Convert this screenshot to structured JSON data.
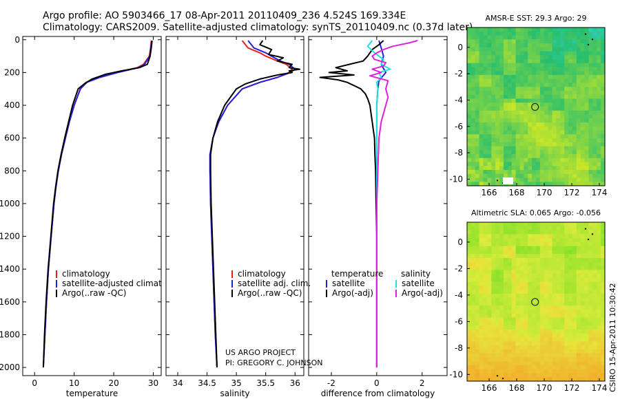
{
  "header": {
    "line1": "Argo profile: AO 5903466_17 08-Apr-2011 20110409_236 4.524S 169.334E",
    "line2": "Climatology: CARS2009. Satellite-adjusted climatology: synTS_20110409.nc (0.37d later)"
  },
  "credits": {
    "project": "US ARGO PROJECT",
    "pi": "PI: GREGORY C. JOHNSON",
    "stamp": "CSIRO 15-Apr-2011 10:30:42"
  },
  "colors": {
    "climatology": "#e82020",
    "satellite": "#2020e0",
    "argo": "#000000",
    "sal_satellite": "#20e0e0",
    "sal_argo": "#e020e0"
  },
  "chart_data": [
    {
      "type": "line",
      "name": "temperature-panel",
      "xlabel": "temperature",
      "ylabel": "",
      "xlim": [
        -3,
        32
      ],
      "ylim": [
        2050,
        -20
      ],
      "xticks": [
        0,
        10,
        20,
        30
      ],
      "xtick_labels": [
        "0",
        "10",
        "20",
        "30"
      ],
      "yticks": [
        0,
        200,
        400,
        600,
        800,
        1000,
        1200,
        1400,
        1600,
        1800,
        2000
      ],
      "ytick_labels": [
        "0",
        "200",
        "400",
        "600",
        "800",
        "1000",
        "1200",
        "1400",
        "1600",
        "1800",
        "2000"
      ],
      "legend": [
        "climatology",
        "satellite-adjusted climatology",
        "Argo(..raw -QC)"
      ],
      "series": [
        {
          "name": "climatology",
          "color": "#e82020",
          "depth": [
            5,
            50,
            100,
            150,
            170,
            200,
            230,
            260,
            300,
            400,
            500,
            600,
            700,
            800,
            900,
            1000,
            1200,
            1400,
            1600,
            1800,
            2000
          ],
          "values": [
            29.5,
            29.3,
            29.0,
            27.5,
            26.0,
            20.5,
            16.0,
            13.0,
            11.5,
            10.0,
            8.8,
            7.8,
            6.8,
            6.0,
            5.4,
            4.9,
            4.2,
            3.5,
            3.0,
            2.6,
            2.2
          ]
        },
        {
          "name": "satellite-adjusted climatology",
          "color": "#2020e0",
          "depth": [
            5,
            50,
            100,
            150,
            170,
            200,
            230,
            260,
            300,
            400,
            500,
            600,
            700,
            800,
            900,
            1000,
            1200,
            1400,
            1600,
            1800,
            2000
          ],
          "values": [
            29.6,
            29.4,
            29.1,
            27.8,
            26.3,
            21.0,
            16.5,
            13.2,
            11.6,
            10.0,
            8.8,
            7.8,
            6.8,
            6.0,
            5.4,
            4.9,
            4.2,
            3.5,
            3.0,
            2.6,
            2.2
          ]
        },
        {
          "name": "Argo(..raw -QC)",
          "color": "#000000",
          "depth": [
            5,
            50,
            100,
            150,
            170,
            190,
            210,
            240,
            270,
            300,
            400,
            500,
            600,
            700,
            800,
            900,
            1000,
            1200,
            1400,
            1600,
            1800,
            2000
          ],
          "values": [
            29.7,
            29.5,
            29.2,
            28.5,
            26.5,
            22.0,
            18.0,
            14.5,
            12.5,
            11.0,
            9.6,
            8.6,
            7.6,
            6.7,
            5.9,
            5.3,
            4.8,
            4.1,
            3.4,
            2.9,
            2.5,
            2.2
          ]
        }
      ]
    },
    {
      "type": "line",
      "name": "salinity-panel",
      "xlabel": "salinity",
      "xlim": [
        33.8,
        36.15
      ],
      "ylim": [
        2050,
        -20
      ],
      "xticks": [
        34,
        34.5,
        35,
        35.5,
        36
      ],
      "xtick_labels": [
        "34",
        "34.5",
        "35",
        "35.5",
        "36"
      ],
      "legend": [
        "climatology",
        "satellite adj. clim.",
        "Argo(..raw -QC)"
      ],
      "series": [
        {
          "name": "climatology",
          "color": "#e82020",
          "depth": [
            5,
            50,
            80,
            100,
            130,
            150,
            180,
            200,
            230,
            260,
            300,
            400,
            500,
            600,
            700,
            800,
            1000,
            1200,
            1400,
            1600,
            1800,
            2000
          ],
          "values": [
            35.1,
            35.2,
            35.4,
            35.5,
            35.7,
            35.85,
            35.95,
            35.9,
            35.7,
            35.4,
            35.1,
            34.85,
            34.7,
            34.6,
            34.55,
            34.55,
            34.56,
            34.58,
            34.6,
            34.62,
            34.64,
            34.67
          ]
        },
        {
          "name": "satellite adj. clim.",
          "color": "#2020e0",
          "depth": [
            5,
            50,
            80,
            100,
            130,
            150,
            180,
            200,
            230,
            260,
            300,
            400,
            500,
            600,
            700,
            800,
            1000,
            1200,
            1400,
            1600,
            1800,
            2000
          ],
          "values": [
            35.2,
            35.3,
            35.5,
            35.6,
            35.75,
            35.9,
            36.0,
            35.92,
            35.7,
            35.4,
            35.1,
            34.85,
            34.7,
            34.6,
            34.55,
            34.55,
            34.56,
            34.58,
            34.6,
            34.62,
            34.64,
            34.67
          ]
        },
        {
          "name": "Argo(..raw -QC)",
          "color": "#000000",
          "depth": [
            5,
            30,
            60,
            90,
            110,
            130,
            150,
            170,
            180,
            190,
            200,
            215,
            240,
            270,
            300,
            400,
            500,
            600,
            700,
            800,
            1000,
            1200,
            1400,
            1600,
            1800,
            2000
          ],
          "values": [
            35.45,
            35.4,
            35.6,
            35.55,
            35.8,
            35.7,
            35.95,
            35.9,
            36.08,
            35.9,
            35.95,
            35.7,
            35.4,
            35.15,
            35.0,
            34.8,
            34.68,
            34.6,
            34.56,
            34.56,
            34.57,
            34.59,
            34.61,
            34.63,
            34.65,
            34.67
          ]
        }
      ]
    },
    {
      "type": "line",
      "name": "difference-panel",
      "xlabel": "difference from climatology",
      "xlim": [
        -3,
        3.1
      ],
      "ylim": [
        2050,
        -20
      ],
      "xticks": [
        -2,
        0,
        2
      ],
      "xtick_labels": [
        "-2",
        "0",
        "2"
      ],
      "legend_left_title": "temperature",
      "legend_right_title": "salinity",
      "legend": [
        "satellite",
        "Argo(-adj)",
        "satellite",
        "Argo(-adj)"
      ],
      "series": [
        {
          "name": "temperature satellite",
          "color": "#2020e0",
          "depth": [
            5,
            50,
            100,
            150,
            200,
            250,
            300,
            400,
            600,
            800,
            1000,
            1400,
            2000
          ],
          "values": [
            0.1,
            0.2,
            0.3,
            0.2,
            0.4,
            0.1,
            0.05,
            0.0,
            0.0,
            0.0,
            0.0,
            0.0,
            0.0
          ]
        },
        {
          "name": "temperature Argo(-adj)",
          "color": "#000000",
          "depth": [
            5,
            30,
            60,
            100,
            130,
            150,
            170,
            190,
            200,
            215,
            230,
            245,
            260,
            280,
            300,
            330,
            360,
            400,
            450,
            500,
            550,
            600,
            700,
            800,
            1000,
            1200,
            1600,
            2000
          ],
          "values": [
            0.3,
            0.1,
            -0.2,
            -0.4,
            -0.6,
            -1.2,
            -1.8,
            -1.3,
            -2.1,
            -1.0,
            -2.5,
            -1.7,
            -1.3,
            -1.0,
            -0.7,
            -0.5,
            -0.4,
            -0.3,
            -0.25,
            -0.2,
            -0.15,
            -0.1,
            -0.08,
            -0.05,
            -0.03,
            0.0,
            0.0,
            0.0
          ]
        },
        {
          "name": "salinity satellite",
          "color": "#20e0e0",
          "depth": [
            5,
            40,
            80,
            120,
            150,
            180,
            200,
            230,
            260,
            300,
            400,
            600,
            800,
            1000,
            1400,
            2000
          ],
          "values": [
            -0.2,
            -0.4,
            -0.1,
            0.3,
            0.2,
            0.6,
            0.1,
            0.2,
            0.0,
            0.05,
            0.0,
            0.0,
            0.0,
            0.0,
            0.0,
            0.0
          ]
        },
        {
          "name": "salinity Argo(-adj)",
          "color": "#e020e0",
          "depth": [
            5,
            20,
            40,
            60,
            80,
            100,
            120,
            140,
            160,
            180,
            200,
            220,
            250,
            300,
            350,
            400,
            500,
            600,
            800,
            1000,
            1400,
            2000
          ],
          "values": [
            1.8,
            1.4,
            0.7,
            0.3,
            0.0,
            -0.2,
            -0.1,
            0.4,
            0.3,
            -0.2,
            0.2,
            -0.3,
            0.5,
            0.4,
            0.5,
            0.4,
            0.2,
            0.1,
            0.05,
            0.0,
            0.0,
            0.0
          ]
        }
      ]
    },
    {
      "type": "heatmap",
      "name": "sst-map",
      "title": "AMSR-E SST: 29.3 Argo: 29",
      "xlim": [
        164.4,
        174.4
      ],
      "ylim": [
        -10.5,
        1.5
      ],
      "xticks": [
        166,
        168,
        170,
        172,
        174
      ],
      "xtick_labels": [
        "166",
        "168",
        "170",
        "172",
        "174"
      ],
      "yticks": [
        0,
        -2,
        -4,
        -6,
        -8,
        -10
      ],
      "ytick_labels": [
        "0",
        "-2",
        "-4",
        "-6",
        "-8",
        "-10"
      ],
      "marker": {
        "lon": 169.334,
        "lat": -4.524
      }
    },
    {
      "type": "heatmap",
      "name": "sla-map",
      "title": "Altimetric SLA: 0.065 Argo: -0.056",
      "xlim": [
        164.4,
        174.4
      ],
      "ylim": [
        -10.5,
        1.5
      ],
      "xticks": [
        166,
        168,
        170,
        172,
        174
      ],
      "xtick_labels": [
        "166",
        "168",
        "170",
        "172",
        "174"
      ],
      "yticks": [
        0,
        -2,
        -4,
        -6,
        -8,
        -10
      ],
      "ytick_labels": [
        "0",
        "-2",
        "-4",
        "-6",
        "-8",
        "-10"
      ],
      "marker": {
        "lon": 169.334,
        "lat": -4.524
      }
    }
  ]
}
